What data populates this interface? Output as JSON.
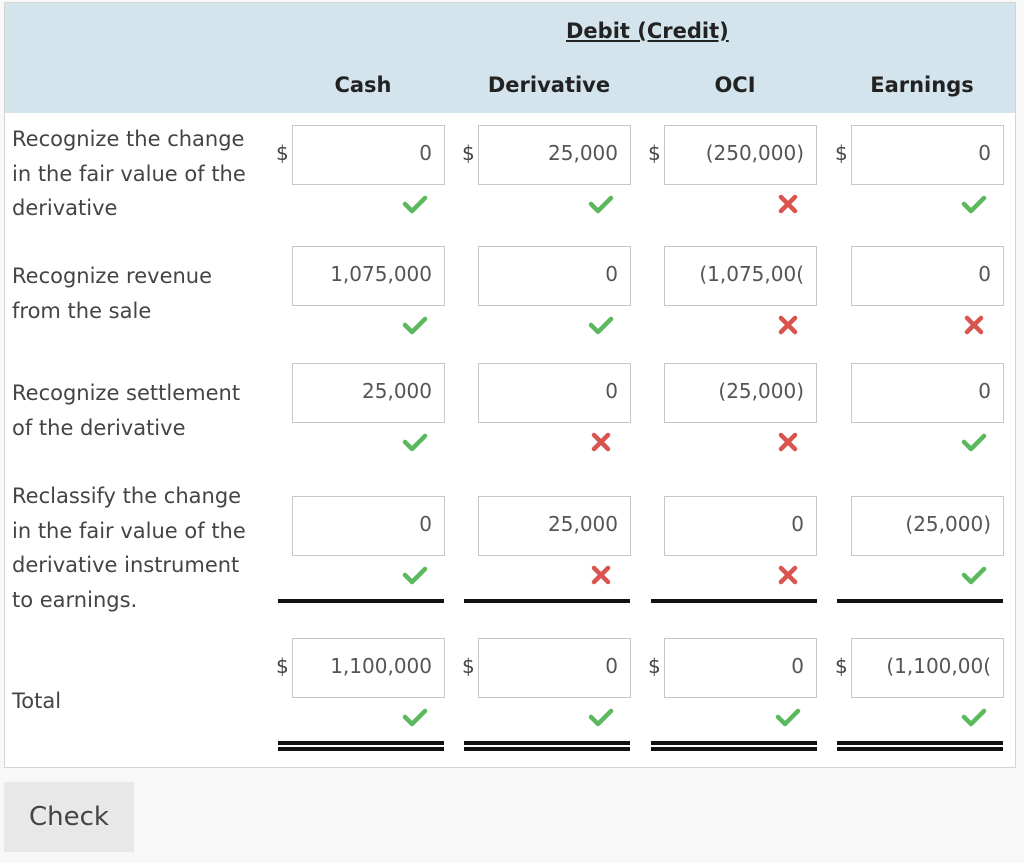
{
  "header": {
    "group_title": "Debit (Credit)",
    "columns": [
      "Cash",
      "Derivative",
      "OCI",
      "Earnings"
    ]
  },
  "currency_symbol": "$",
  "rows": [
    {
      "label_lines": [
        "Recognize the change",
        "in the fair value of the",
        "derivative"
      ],
      "values": [
        "0",
        "25,000",
        "(250,000)",
        "0"
      ],
      "marks": [
        "correct",
        "correct",
        "incorrect",
        "correct"
      ]
    },
    {
      "label_lines": [
        "Recognize revenue",
        "from the sale"
      ],
      "values": [
        "1,075,000",
        "0",
        "(1,075,00(",
        "0"
      ],
      "marks": [
        "correct",
        "correct",
        "incorrect",
        "incorrect"
      ]
    },
    {
      "label_lines": [
        "Recognize settlement",
        "of the derivative"
      ],
      "values": [
        "25,000",
        "0",
        "(25,000)",
        "0"
      ],
      "marks": [
        "correct",
        "incorrect",
        "incorrect",
        "correct"
      ]
    },
    {
      "label_lines": [
        "Reclassify the change",
        "in the fair value of the",
        "derivative instrument",
        "to earnings."
      ],
      "values": [
        "0",
        "25,000",
        "0",
        "(25,000)"
      ],
      "marks": [
        "correct",
        "incorrect",
        "incorrect",
        "correct"
      ]
    }
  ],
  "total": {
    "label": "Total",
    "values": [
      "1,100,000",
      "0",
      "0",
      "(1,100,00("
    ],
    "marks": [
      "correct",
      "correct",
      "correct",
      "correct"
    ]
  },
  "colors": {
    "correct": "#5cb85c",
    "incorrect": "#d9534f",
    "header_bg": "#d4e4ec"
  },
  "check_button": {
    "label": "Check"
  }
}
